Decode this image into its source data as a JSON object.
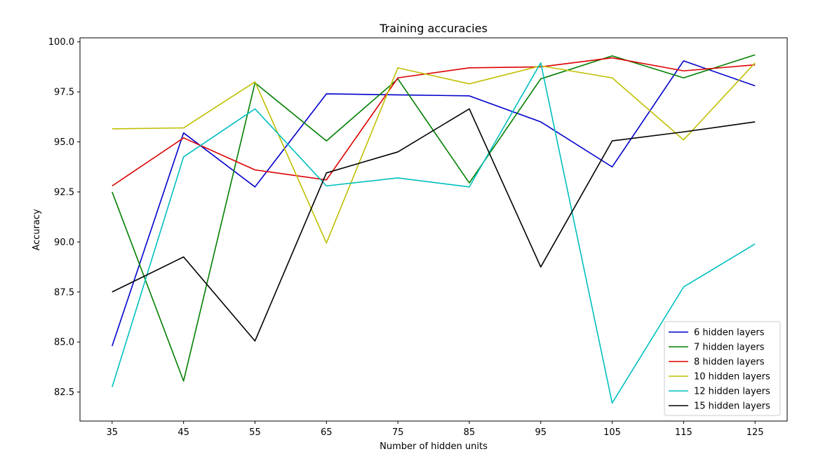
{
  "chart_data": {
    "type": "line",
    "title": "Training accuracies",
    "xlabel": "Number of hidden units",
    "ylabel": "Accuracy",
    "x": [
      35,
      45,
      55,
      65,
      75,
      85,
      95,
      105,
      115,
      125
    ],
    "xlim": [
      30.5,
      129.5
    ],
    "ylim": [
      81.05,
      100.2
    ],
    "xticks": [
      35,
      45,
      55,
      65,
      75,
      85,
      95,
      105,
      115,
      125
    ],
    "xtick_labels": [
      "35",
      "45",
      "55",
      "65",
      "75",
      "85",
      "95",
      "105",
      "115",
      "125"
    ],
    "yticks": [
      82.5,
      85.0,
      87.5,
      90.0,
      92.5,
      95.0,
      97.5,
      100.0
    ],
    "ytick_labels": [
      "82.5",
      "85.0",
      "87.5",
      "90.0",
      "92.5",
      "95.0",
      "97.5",
      "100.0"
    ],
    "grid": false,
    "legend_position": "lower-right",
    "series": [
      {
        "name": "6 hidden layers",
        "color": "#0000cc",
        "values": [
          84.8,
          95.45,
          92.75,
          97.4,
          97.35,
          97.3,
          96.0,
          93.75,
          99.05,
          97.8
        ]
      },
      {
        "name": "7 hidden layers",
        "color": "#007f00",
        "values": [
          92.5,
          83.05,
          97.95,
          95.05,
          98.15,
          92.95,
          98.15,
          99.3,
          98.2,
          99.35
        ]
      },
      {
        "name": "8 hidden layers",
        "color": "#dd0000",
        "values": [
          92.8,
          95.2,
          93.6,
          93.1,
          98.2,
          98.7,
          98.75,
          99.2,
          98.55,
          98.85
        ]
      },
      {
        "name": "10 hidden layers",
        "color": "#bfbf00",
        "values": [
          95.65,
          95.7,
          98.0,
          89.95,
          98.7,
          97.9,
          98.8,
          98.2,
          95.1,
          98.95
        ]
      },
      {
        "name": "12 hidden layers",
        "color": "#00bfbf",
        "values": [
          82.75,
          94.25,
          96.65,
          92.8,
          93.2,
          92.75,
          98.95,
          81.95,
          87.75,
          89.9
        ]
      },
      {
        "name": "15 hidden layers",
        "color": "#000000",
        "values": [
          87.5,
          89.25,
          85.05,
          93.45,
          94.5,
          96.65,
          88.75,
          95.05,
          95.5,
          96.0
        ]
      }
    ]
  }
}
